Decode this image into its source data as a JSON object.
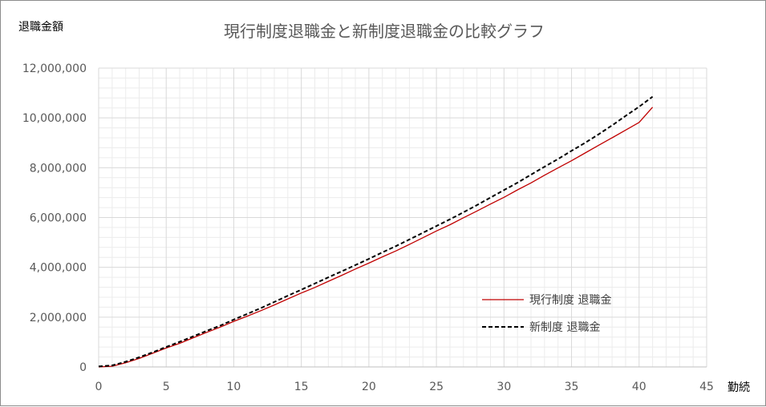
{
  "chart_data": {
    "type": "line",
    "title": "現行制度退職金と新制度退職金の比較グラフ",
    "ylabel": "退職金額",
    "xlabel": "勤続",
    "xlim": [
      0,
      45
    ],
    "ylim": [
      0,
      12000000
    ],
    "x_ticks": [
      "0",
      "5",
      "10",
      "15",
      "20",
      "25",
      "30",
      "35",
      "40",
      "45"
    ],
    "y_ticks": [
      "0",
      "2,000,000",
      "4,000,000",
      "6,000,000",
      "8,000,000",
      "10,000,000",
      "12,000,000"
    ],
    "grid": true,
    "legend_position": "right",
    "x": [
      0,
      1,
      2,
      3,
      4,
      5,
      6,
      7,
      8,
      9,
      10,
      11,
      12,
      13,
      14,
      15,
      16,
      17,
      18,
      19,
      20,
      21,
      22,
      23,
      24,
      25,
      26,
      27,
      28,
      29,
      30,
      31,
      32,
      33,
      34,
      35,
      36,
      37,
      38,
      39,
      40,
      41
    ],
    "series": [
      {
        "name": "現行制度 退職金",
        "color": "#c00000",
        "dash": "solid",
        "values": [
          0,
          30000,
          170000,
          340000,
          550000,
          760000,
          950000,
          1170000,
          1390000,
          1600000,
          1830000,
          2040000,
          2260000,
          2490000,
          2730000,
          2970000,
          3190000,
          3440000,
          3680000,
          3930000,
          4170000,
          4420000,
          4660000,
          4920000,
          5190000,
          5460000,
          5710000,
          5990000,
          6260000,
          6540000,
          6810000,
          7110000,
          7390000,
          7700000,
          7990000,
          8280000,
          8590000,
          8900000,
          9200000,
          9510000,
          9820000,
          10430000
        ]
      },
      {
        "name": "新制度 退職金",
        "color": "#000000",
        "dash": "dashed",
        "values": [
          20000,
          60000,
          210000,
          390000,
          590000,
          800000,
          1010000,
          1230000,
          1450000,
          1660000,
          1900000,
          2130000,
          2360000,
          2610000,
          2860000,
          3100000,
          3350000,
          3600000,
          3840000,
          4090000,
          4340000,
          4600000,
          4850000,
          5120000,
          5390000,
          5660000,
          5930000,
          6210000,
          6500000,
          6800000,
          7100000,
          7400000,
          7720000,
          8040000,
          8350000,
          8680000,
          9000000,
          9340000,
          9700000,
          10080000,
          10450000,
          10850000
        ]
      }
    ]
  }
}
